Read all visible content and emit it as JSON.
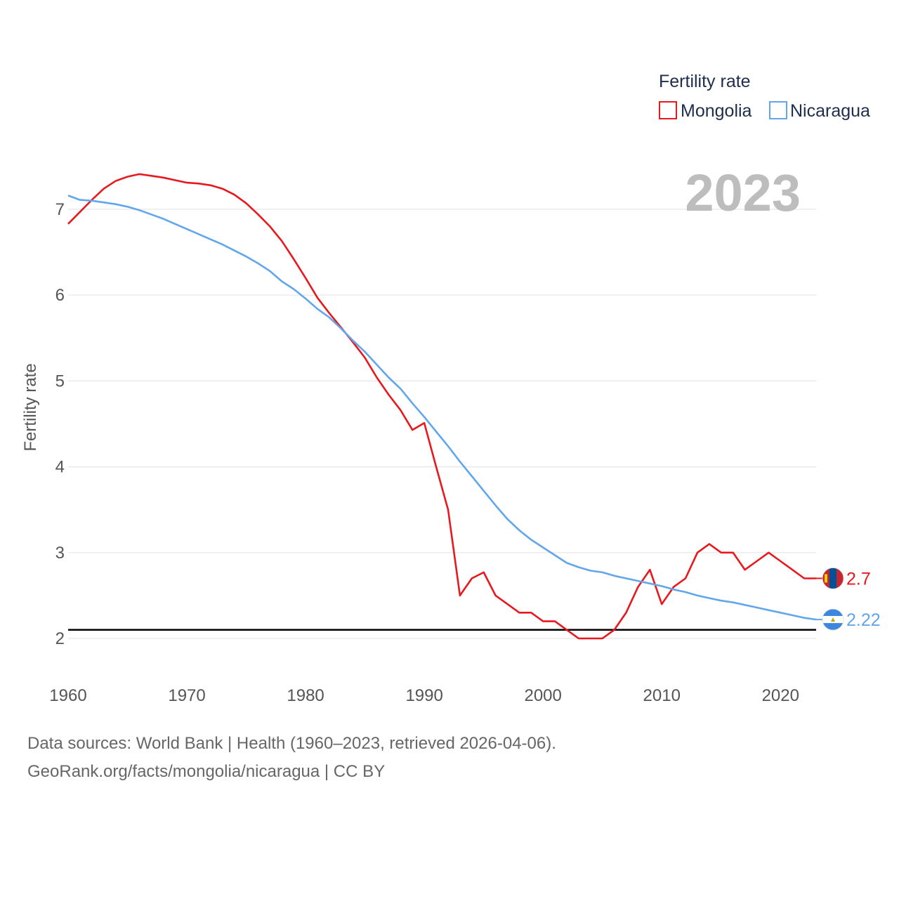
{
  "chart_data": {
    "type": "line",
    "title": "",
    "legend_title": "Fertility rate",
    "ylabel": "Fertility rate",
    "xlabel": "",
    "current_year_label": "2023",
    "xlim": [
      1960,
      2023
    ],
    "ylim": [
      1.5,
      7.5
    ],
    "x_ticks": [
      1960,
      1970,
      1980,
      1990,
      2000,
      2010,
      2020
    ],
    "y_ticks": [
      2,
      3,
      4,
      5,
      6,
      7
    ],
    "reference_line": {
      "value": 2.1
    },
    "x": [
      1960,
      1961,
      1962,
      1963,
      1964,
      1965,
      1966,
      1967,
      1968,
      1969,
      1970,
      1971,
      1972,
      1973,
      1974,
      1975,
      1976,
      1977,
      1978,
      1979,
      1980,
      1981,
      1982,
      1983,
      1984,
      1985,
      1986,
      1987,
      1988,
      1989,
      1990,
      1991,
      1992,
      1993,
      1994,
      1995,
      1996,
      1997,
      1998,
      1999,
      2000,
      2001,
      2002,
      2003,
      2004,
      2005,
      2006,
      2007,
      2008,
      2009,
      2010,
      2011,
      2012,
      2013,
      2014,
      2015,
      2016,
      2017,
      2018,
      2019,
      2020,
      2021,
      2022,
      2023
    ],
    "series": [
      {
        "name": "Mongolia",
        "color": "#e8191e",
        "end_label": "2.7",
        "flag_icon": "mongolia-flag-icon",
        "values": [
          6.83,
          6.97,
          7.11,
          7.24,
          7.33,
          7.38,
          7.41,
          7.39,
          7.37,
          7.34,
          7.31,
          7.3,
          7.28,
          7.24,
          7.17,
          7.07,
          6.94,
          6.8,
          6.63,
          6.42,
          6.2,
          5.97,
          5.79,
          5.62,
          5.45,
          5.27,
          5.04,
          4.84,
          4.66,
          4.43,
          4.51,
          4.0,
          3.5,
          2.5,
          2.7,
          2.77,
          2.5,
          2.4,
          2.3,
          2.3,
          2.2,
          2.2,
          2.1,
          2.0,
          2.0,
          2.0,
          2.1,
          2.3,
          2.6,
          2.8,
          2.4,
          2.6,
          2.7,
          3.0,
          3.1,
          3.0,
          3.0,
          2.8,
          2.9,
          3.0,
          2.9,
          2.8,
          2.7,
          2.7
        ]
      },
      {
        "name": "Nicaragua",
        "color": "#62a6ec",
        "end_label": "2.22",
        "flag_icon": "nicaragua-flag-icon",
        "values": [
          7.16,
          7.11,
          7.1,
          7.08,
          7.06,
          7.03,
          6.99,
          6.94,
          6.89,
          6.83,
          6.77,
          6.71,
          6.65,
          6.59,
          6.52,
          6.45,
          6.37,
          6.28,
          6.16,
          6.07,
          5.96,
          5.84,
          5.74,
          5.61,
          5.47,
          5.34,
          5.19,
          5.04,
          4.91,
          4.74,
          4.58,
          4.41,
          4.24,
          4.06,
          3.89,
          3.72,
          3.55,
          3.39,
          3.26,
          3.15,
          3.06,
          2.97,
          2.88,
          2.83,
          2.79,
          2.77,
          2.73,
          2.7,
          2.67,
          2.64,
          2.61,
          2.57,
          2.54,
          2.5,
          2.47,
          2.44,
          2.42,
          2.39,
          2.36,
          2.33,
          2.3,
          2.27,
          2.24,
          2.22
        ]
      }
    ]
  },
  "footer": {
    "sources": "Data sources: World Bank | Health (1960–2023, retrieved 2026-04-06).",
    "attribution": "GeoRank.org/facts/mongolia/nicaragua | CC BY"
  }
}
